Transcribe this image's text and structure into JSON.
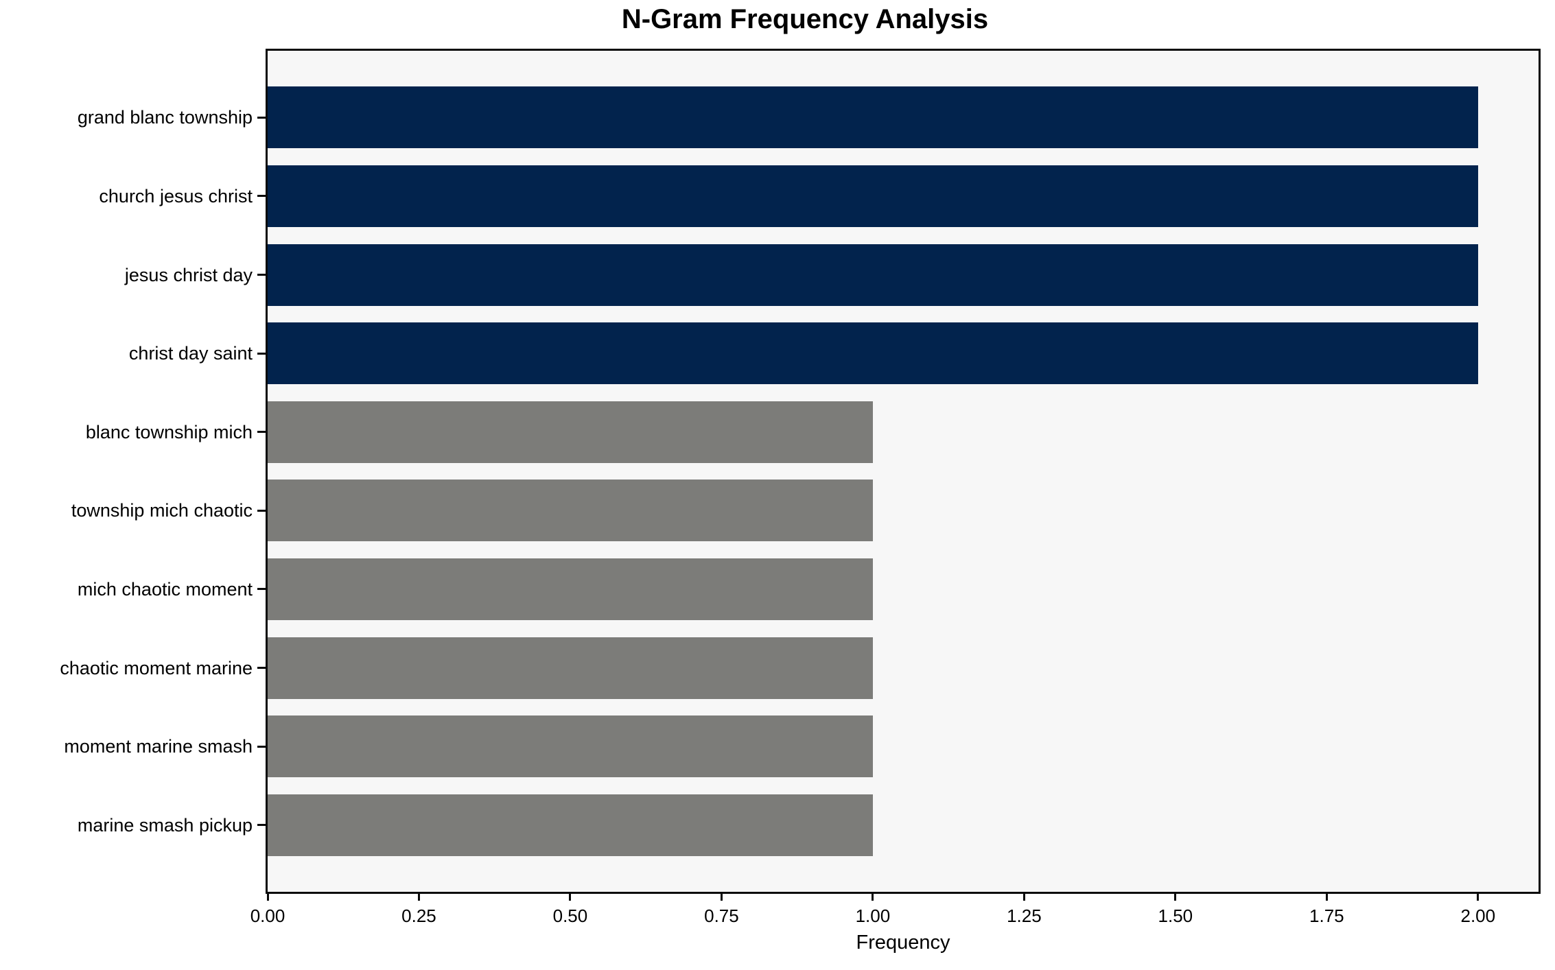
{
  "chart_data": {
    "type": "bar",
    "orientation": "horizontal",
    "title": "N-Gram Frequency Analysis",
    "xlabel": "Frequency",
    "ylabel": "",
    "categories": [
      "grand blanc township",
      "church jesus christ",
      "jesus christ day",
      "christ day saint",
      "blanc township mich",
      "township mich chaotic",
      "mich chaotic moment",
      "chaotic moment marine",
      "moment marine smash",
      "marine smash pickup"
    ],
    "values": [
      2,
      2,
      2,
      2,
      1,
      1,
      1,
      1,
      1,
      1
    ],
    "bar_colors": [
      "#02234D",
      "#02234D",
      "#02234D",
      "#02234D",
      "#7C7C79",
      "#7C7C79",
      "#7C7C79",
      "#7C7C79",
      "#7C7C79",
      "#7C7C79"
    ],
    "xlim": [
      0,
      2.1
    ],
    "xticks": [
      0,
      0.25,
      0.5,
      0.75,
      1.0,
      1.25,
      1.5,
      1.75,
      2.0
    ],
    "xtick_labels": [
      "0.00",
      "0.25",
      "0.50",
      "0.75",
      "1.00",
      "1.25",
      "1.50",
      "1.75",
      "2.00"
    ],
    "grid": false,
    "legend": false,
    "colors": {
      "highlight_bar": "#02234D",
      "default_bar": "#7C7C79",
      "plot_background": "#F7F7F7",
      "figure_background": "#FFFFFF",
      "frame": "#0A0A0A",
      "text": "#000000"
    }
  }
}
